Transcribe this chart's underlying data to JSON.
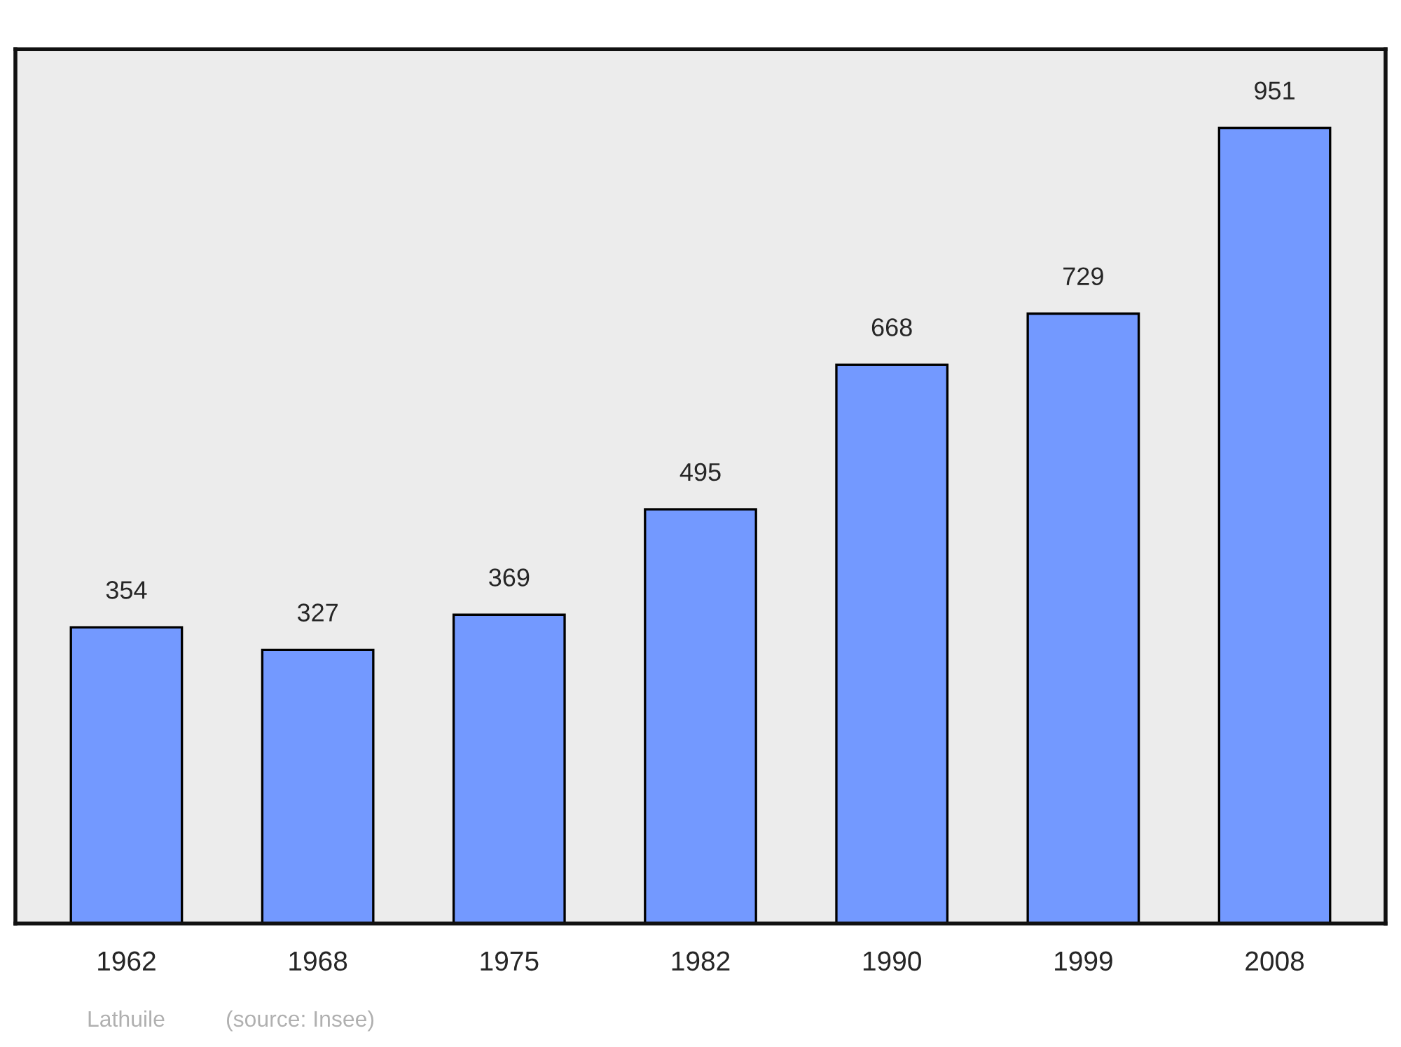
{
  "chart_data": {
    "type": "bar",
    "categories": [
      "1962",
      "1968",
      "1975",
      "1982",
      "1990",
      "1999",
      "2008"
    ],
    "values": [
      354,
      327,
      369,
      495,
      668,
      729,
      951
    ],
    "color": "#7399ff",
    "data_labels": true,
    "grid": false,
    "annotations": [
      "Lathuile",
      "(source: Insee)"
    ]
  }
}
